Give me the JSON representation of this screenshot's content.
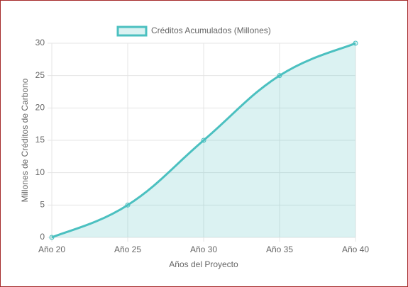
{
  "chart_data": {
    "type": "line",
    "categories": [
      "Año 20",
      "Año 25",
      "Año 30",
      "Año 35",
      "Año 40"
    ],
    "series": [
      {
        "name": "Créditos Acumulados (Millones)",
        "color": "#4bc0c0",
        "values": [
          0,
          5,
          15,
          25,
          30
        ]
      }
    ],
    "ylim": [
      0,
      30
    ],
    "yticks": [
      0,
      5,
      10,
      15,
      20,
      25,
      30
    ],
    "y_label": "Millones de Créditos de Carbono",
    "x_label": "Años del Proyecto",
    "grid": true,
    "fill": true,
    "legend": "top"
  }
}
